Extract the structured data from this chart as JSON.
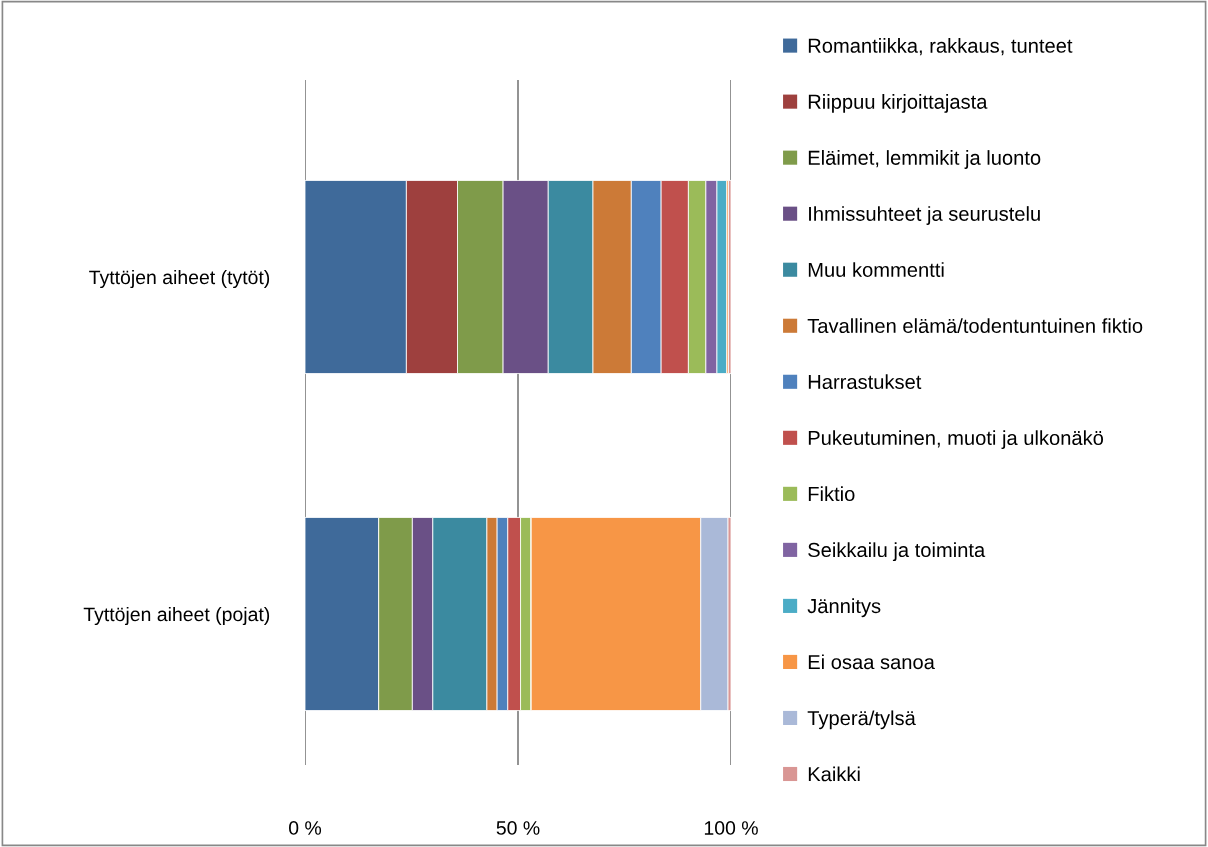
{
  "chart_data": {
    "type": "bar",
    "orientation": "horizontal",
    "stacked": true,
    "categories": [
      "Tyttöjen aiheet (tytöt)",
      "Tyttöjen aiheet (pojat)"
    ],
    "series": [
      {
        "name": "Romantiikka, rakkaus, tunteet",
        "color": "#3f6a9a",
        "values": [
          23.8,
          17.3
        ]
      },
      {
        "name": "Riippuu kirjoittajasta",
        "color": "#9e403e",
        "values": [
          12.0,
          0
        ]
      },
      {
        "name": "Eläimet, lemmikit ja luonto",
        "color": "#7f9b4a",
        "values": [
          10.7,
          7.9
        ]
      },
      {
        "name": "Ihmissuhteet ja seurustelu",
        "color": "#6a5086",
        "values": [
          10.6,
          4.8
        ]
      },
      {
        "name": "Muu kommentti",
        "color": "#3b8aa0",
        "values": [
          10.5,
          12.7
        ]
      },
      {
        "name": "Tavallinen elämä/todentuntuinen fiktio",
        "color": "#cc7a37",
        "values": [
          9.0,
          2.4
        ]
      },
      {
        "name": "Harrastukset",
        "color": "#4f81bd",
        "values": [
          7.0,
          2.5
        ]
      },
      {
        "name": "Pukeutuminen, muoti ja ulkonäkö",
        "color": "#c0504d",
        "values": [
          6.4,
          3.0
        ]
      },
      {
        "name": "Fiktio",
        "color": "#9bbb59",
        "values": [
          4.1,
          2.5
        ]
      },
      {
        "name": "Seikkailu ja toiminta",
        "color": "#8064a2",
        "values": [
          2.6,
          0
        ]
      },
      {
        "name": "Jännitys",
        "color": "#4bacc6",
        "values": [
          2.3,
          0
        ]
      },
      {
        "name": "Ei osaa sanoa",
        "color": "#f79646",
        "values": [
          0.4,
          39.8
        ]
      },
      {
        "name": "Typerä/tylsä",
        "color": "#aab9d8",
        "values": [
          0,
          6.4
        ]
      },
      {
        "name": "Kaikki",
        "color": "#d99694",
        "values": [
          0.6,
          0.7
        ]
      }
    ],
    "xlim": [
      0,
      100
    ],
    "xticks": [
      {
        "value": 0,
        "label": "0 %"
      },
      {
        "value": 50,
        "label": "50 %"
      },
      {
        "value": 100,
        "label": "100 %"
      }
    ],
    "grid": "x",
    "legend": "right"
  }
}
